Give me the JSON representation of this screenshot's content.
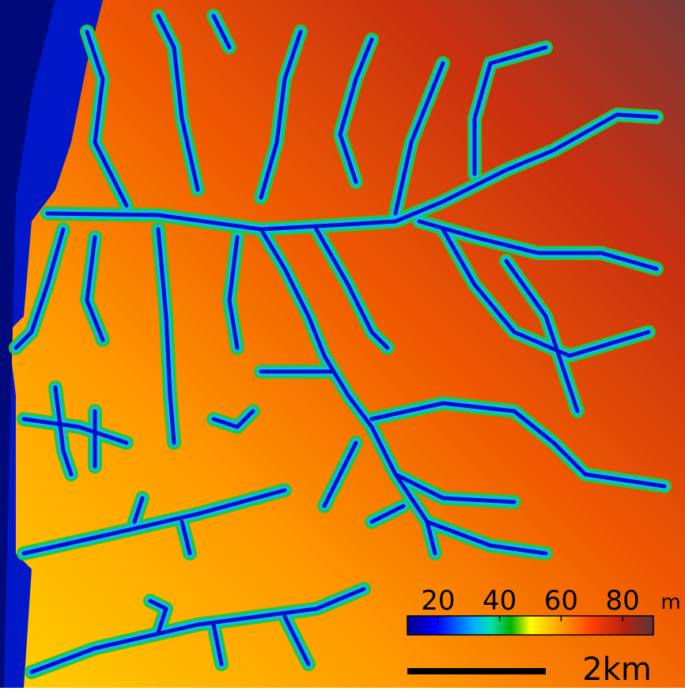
{
  "legend": {
    "ticks": [
      20,
      40,
      60,
      80
    ],
    "range": [
      10,
      90
    ],
    "unit": "m"
  },
  "scale_bar": {
    "label": "2km"
  }
}
